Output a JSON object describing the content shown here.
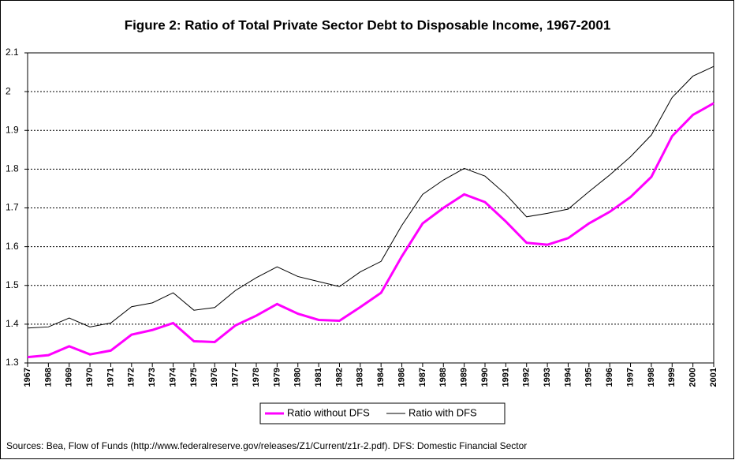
{
  "chart_data": {
    "type": "line",
    "title": "Figure 2: Ratio of Total Private Sector Debt to Disposable Income, 1967-2001",
    "source": "Sources: Bea, Flow of Funds (http://www.federalreserve.gov/releases/Z1/Current/z1r-2.pdf). DFS: Domestic Financial Sector",
    "categories": [
      "1967",
      "1968",
      "1969",
      "1970",
      "1971",
      "1972",
      "1973",
      "1974",
      "1975",
      "1976",
      "1977",
      "1978",
      "1979",
      "1980",
      "1981",
      "1982",
      "1983",
      "1984",
      "1986",
      "1987",
      "1988",
      "1989",
      "1990",
      "1991",
      "1992",
      "1993",
      "1994",
      "1995",
      "1996",
      "1997",
      "1998",
      "1999",
      "2000",
      "2001"
    ],
    "series": [
      {
        "name": "Ratio without DFS",
        "color": "#ff00ff",
        "values": [
          1.315,
          1.32,
          1.343,
          1.322,
          1.332,
          1.373,
          1.385,
          1.403,
          1.356,
          1.354,
          1.397,
          1.422,
          1.452,
          1.427,
          1.411,
          1.409,
          1.444,
          1.481,
          1.575,
          1.66,
          1.7,
          1.735,
          1.715,
          1.665,
          1.61,
          1.605,
          1.622,
          1.66,
          1.69,
          1.728,
          1.78,
          1.885,
          1.94,
          1.97
        ]
      },
      {
        "name": "Ratio with DFS",
        "color": "#000000",
        "values": [
          1.39,
          1.393,
          1.416,
          1.393,
          1.403,
          1.445,
          1.455,
          1.481,
          1.436,
          1.443,
          1.487,
          1.52,
          1.548,
          1.523,
          1.51,
          1.497,
          1.535,
          1.562,
          1.655,
          1.735,
          1.772,
          1.802,
          1.782,
          1.735,
          1.677,
          1.686,
          1.697,
          1.742,
          1.785,
          1.832,
          1.888,
          1.985,
          2.04,
          2.065
        ]
      }
    ],
    "ylim": [
      1.3,
      2.1
    ],
    "yticks": [
      1.3,
      1.4,
      1.5,
      1.6,
      1.7,
      1.8,
      1.9,
      2,
      2.1
    ],
    "grid": true,
    "legend": "bottom"
  }
}
